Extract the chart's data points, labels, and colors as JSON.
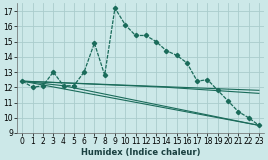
{
  "xlabel": "Humidex (Indice chaleur)",
  "background_color": "#cce8e8",
  "grid_color": "#aacccc",
  "line_color": "#1a6b5a",
  "xlim": [
    -0.5,
    23.5
  ],
  "ylim": [
    9,
    17.5
  ],
  "yticks": [
    9,
    10,
    11,
    12,
    13,
    14,
    15,
    16,
    17
  ],
  "xticks": [
    0,
    1,
    2,
    3,
    4,
    5,
    6,
    7,
    8,
    9,
    10,
    11,
    12,
    13,
    14,
    15,
    16,
    17,
    18,
    19,
    20,
    21,
    22,
    23
  ],
  "curve_x": [
    0,
    1,
    2,
    3,
    4,
    5,
    6,
    7,
    8,
    9,
    10,
    11,
    12,
    13,
    14,
    15,
    16,
    17,
    18,
    19,
    20,
    21,
    22,
    23
  ],
  "curve_y": [
    12.4,
    12.0,
    12.1,
    13.0,
    12.1,
    12.1,
    13.0,
    14.9,
    12.8,
    17.2,
    16.1,
    15.4,
    15.4,
    15.0,
    14.4,
    14.1,
    13.6,
    12.4,
    12.5,
    11.8,
    11.1,
    10.4,
    10.0,
    9.5
  ],
  "line1_x": [
    0,
    23
  ],
  "line1_y": [
    12.4,
    11.8
  ],
  "line2_x": [
    0,
    14,
    23
  ],
  "line2_y": [
    12.4,
    12.0,
    11.6
  ],
  "line3_x": [
    0,
    23
  ],
  "line3_y": [
    12.4,
    9.5
  ],
  "line4_x": [
    0,
    4,
    23
  ],
  "line4_y": [
    12.4,
    12.1,
    9.5
  ]
}
